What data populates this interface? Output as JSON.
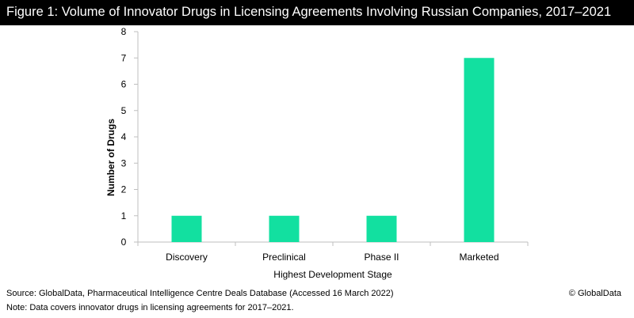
{
  "header": {
    "title": "Figure 1: Volume of Innovator Drugs in Licensing Agreements Involving Russian Companies, 2017–2021",
    "background_color": "#000000",
    "text_color": "#ffffff"
  },
  "chart_data": {
    "type": "bar",
    "categories": [
      "Discovery",
      "Preclinical",
      "Phase II",
      "Marketed"
    ],
    "series": [
      {
        "values": [
          1,
          1,
          1,
          7
        ]
      }
    ],
    "xlabel": "Highest Development Stage",
    "ylabel": "Number of Drugs",
    "ylim": [
      0,
      8
    ],
    "yticks": [
      0,
      1,
      2,
      3,
      4,
      5,
      6,
      7,
      8
    ],
    "grid": false,
    "bar_color": "#12e0a0"
  },
  "footer": {
    "source": "Source: GlobalData, Pharmaceutical Intelligence Centre Deals Database (Accessed 16 March 2022)",
    "note": "Note: Data covers innovator drugs in licensing agreements for 2017–2021.",
    "credit": "© GlobalData"
  }
}
